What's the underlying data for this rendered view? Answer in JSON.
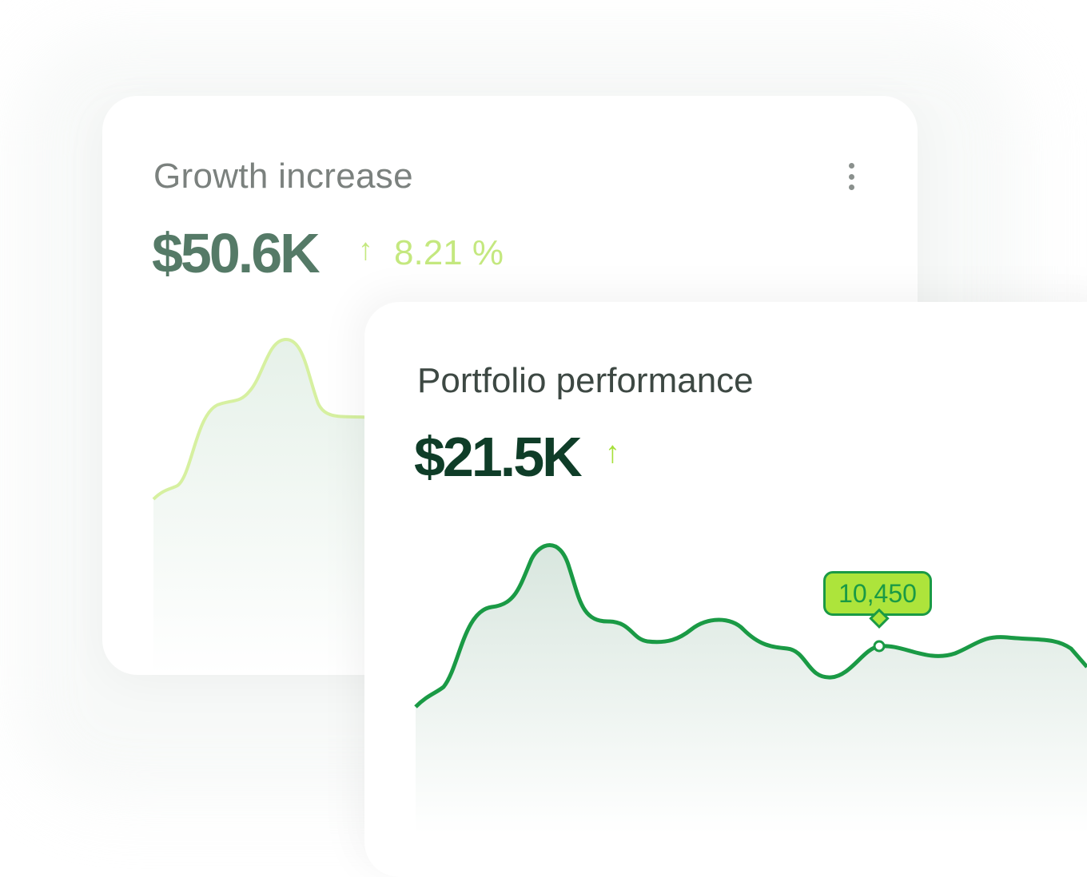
{
  "growth_card": {
    "title": "Growth increase",
    "value": "$50.6K",
    "change": "8.21 %",
    "trend_icon": "arrow-up-icon",
    "menu_icon": "kebab-menu-icon",
    "line_color": "#d6f0a0"
  },
  "portfolio_card": {
    "title": "Portfolio performance",
    "value": "$21.5K",
    "trend_icon": "arrow-up-icon",
    "tooltip_value": "10,450",
    "line_color": "#1a9a45",
    "tooltip_color": "#ade43b"
  },
  "icons": {
    "arrow": "↑"
  }
}
